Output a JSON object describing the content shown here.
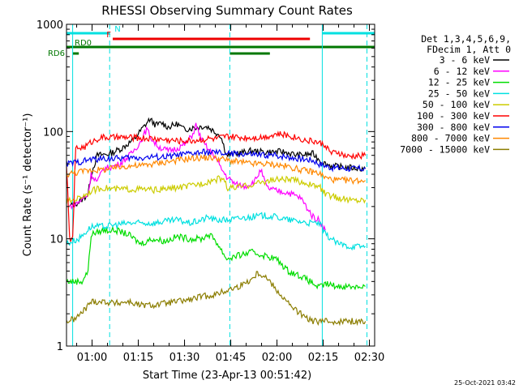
{
  "chart_data": {
    "type": "line",
    "title": "RHESSI Observing Summary Count Rates",
    "xlabel": "Start Time (23-Apr-13 00:51:42)",
    "ylabel": "Count Rate (s⁻¹ detector⁻¹)",
    "x_unit": "minutes after 00:51:42",
    "xlim": [
      0,
      100
    ],
    "ylim": [
      1,
      1000
    ],
    "yscale": "log",
    "x_ticks": [
      {
        "t": 8.3,
        "label": "01:00"
      },
      {
        "t": 23.3,
        "label": "01:15"
      },
      {
        "t": 38.3,
        "label": "01:30"
      },
      {
        "t": 53.3,
        "label": "01:45"
      },
      {
        "t": 68.3,
        "label": "02:00"
      },
      {
        "t": 83.3,
        "label": "02:15"
      },
      {
        "t": 98.3,
        "label": "02:30"
      }
    ],
    "y_ticks": [
      {
        "v": 1,
        "label": "1"
      },
      {
        "v": 10,
        "label": "10"
      },
      {
        "v": 100,
        "label": "100"
      },
      {
        "v": 1000,
        "label": "1000"
      }
    ],
    "legend": {
      "placement": "right",
      "header": [
        "Det 1,3,4,5,6,9,",
        "FDecim 1, Att 0"
      ]
    },
    "series": [
      {
        "name": "3 - 6 keV",
        "color": "#000000",
        "points": [
          [
            1,
            20
          ],
          [
            4,
            22
          ],
          [
            7,
            26
          ],
          [
            8,
            40
          ],
          [
            10,
            60
          ],
          [
            14,
            62
          ],
          [
            18,
            70
          ],
          [
            22,
            85
          ],
          [
            25,
            110
          ],
          [
            27,
            130
          ],
          [
            29,
            115
          ],
          [
            31,
            120
          ],
          [
            33,
            110
          ],
          [
            36,
            118
          ],
          [
            38,
            105
          ],
          [
            41,
            108
          ],
          [
            44,
            112
          ],
          [
            46,
            110
          ],
          [
            48,
            100
          ],
          [
            50,
            92
          ],
          [
            52,
            60
          ],
          [
            55,
            62
          ],
          [
            60,
            66
          ],
          [
            65,
            64
          ],
          [
            70,
            65
          ],
          [
            75,
            60
          ],
          [
            80,
            62
          ],
          [
            82,
            55
          ],
          [
            84,
            50
          ],
          [
            86,
            48
          ],
          [
            88,
            47
          ],
          [
            92,
            46
          ],
          [
            97,
            45
          ]
        ]
      },
      {
        "name": "6 - 12 keV",
        "color": "#ff00ff",
        "points": [
          [
            1,
            20
          ],
          [
            4,
            22
          ],
          [
            7,
            26
          ],
          [
            8,
            40
          ],
          [
            10,
            34
          ],
          [
            12,
            45
          ],
          [
            16,
            48
          ],
          [
            18,
            52
          ],
          [
            21,
            62
          ],
          [
            24,
            80
          ],
          [
            26,
            105
          ],
          [
            28,
            82
          ],
          [
            30,
            72
          ],
          [
            33,
            66
          ],
          [
            36,
            70
          ],
          [
            39,
            78
          ],
          [
            41,
            95
          ],
          [
            42,
            115
          ],
          [
            44,
            82
          ],
          [
            46,
            68
          ],
          [
            48,
            60
          ],
          [
            50,
            46
          ],
          [
            52,
            38
          ],
          [
            55,
            32
          ],
          [
            58,
            31
          ],
          [
            61,
            34
          ],
          [
            63,
            44
          ],
          [
            65,
            30
          ],
          [
            68,
            28
          ],
          [
            72,
            27
          ],
          [
            76,
            24
          ],
          [
            80,
            16
          ],
          [
            82,
            15
          ],
          [
            84,
            12
          ]
        ]
      },
      {
        "name": "12 - 25 keV",
        "color": "#00dd00",
        "points": [
          [
            0,
            4
          ],
          [
            5,
            4
          ],
          [
            7,
            5
          ],
          [
            8,
            11
          ],
          [
            12,
            12
          ],
          [
            16,
            12
          ],
          [
            20,
            11
          ],
          [
            24,
            9
          ],
          [
            28,
            10
          ],
          [
            32,
            9.5
          ],
          [
            36,
            10.5
          ],
          [
            40,
            10
          ],
          [
            44,
            10
          ],
          [
            46,
            11
          ],
          [
            48,
            10
          ],
          [
            52,
            6.5
          ],
          [
            56,
            7
          ],
          [
            60,
            7.5
          ],
          [
            64,
            7
          ],
          [
            68,
            6.5
          ],
          [
            72,
            5
          ],
          [
            76,
            4.5
          ],
          [
            79,
            4
          ],
          [
            82,
            3.5
          ],
          [
            84,
            3.8
          ],
          [
            88,
            3.6
          ],
          [
            92,
            3.6
          ],
          [
            97,
            3.6
          ]
        ]
      },
      {
        "name": "25 - 50 keV",
        "color": "#00e0e0",
        "points": [
          [
            0,
            9
          ],
          [
            4,
            10
          ],
          [
            8,
            13
          ],
          [
            12,
            13
          ],
          [
            16,
            13.5
          ],
          [
            20,
            14
          ],
          [
            24,
            14
          ],
          [
            28,
            14
          ],
          [
            32,
            14.5
          ],
          [
            36,
            15
          ],
          [
            40,
            14
          ],
          [
            44,
            15
          ],
          [
            46,
            16
          ],
          [
            48,
            15
          ],
          [
            52,
            15
          ],
          [
            56,
            15.5
          ],
          [
            60,
            16
          ],
          [
            64,
            16.5
          ],
          [
            68,
            16
          ],
          [
            72,
            15
          ],
          [
            76,
            14.5
          ],
          [
            79,
            14
          ],
          [
            82,
            14
          ],
          [
            84,
            11
          ],
          [
            86,
            10
          ],
          [
            88,
            9
          ],
          [
            92,
            8.5
          ],
          [
            97,
            8.5
          ]
        ]
      },
      {
        "name": "50 - 100 keV",
        "color": "#cccc00",
        "points": [
          [
            0,
            22
          ],
          [
            4,
            24
          ],
          [
            8,
            28
          ],
          [
            12,
            30
          ],
          [
            16,
            29
          ],
          [
            20,
            29
          ],
          [
            24,
            29
          ],
          [
            28,
            28.5
          ],
          [
            32,
            29
          ],
          [
            36,
            30
          ],
          [
            40,
            31
          ],
          [
            44,
            33
          ],
          [
            47,
            35
          ],
          [
            49,
            36
          ],
          [
            51,
            37
          ],
          [
            52,
            30
          ],
          [
            55,
            30
          ],
          [
            58,
            31
          ],
          [
            62,
            33
          ],
          [
            66,
            35
          ],
          [
            70,
            36
          ],
          [
            74,
            35
          ],
          [
            78,
            33
          ],
          [
            80,
            31
          ],
          [
            82,
            31
          ],
          [
            84,
            26
          ],
          [
            88,
            24
          ],
          [
            92,
            23
          ],
          [
            97,
            23
          ]
        ]
      },
      {
        "name": "100 - 300 keV",
        "color": "#ff0000",
        "points": [
          [
            0,
            50
          ],
          [
            1,
            10
          ],
          [
            2,
            10
          ],
          [
            3,
            70
          ],
          [
            6,
            72
          ],
          [
            8,
            80
          ],
          [
            11,
            88
          ],
          [
            16,
            88
          ],
          [
            20,
            88
          ],
          [
            24,
            87
          ],
          [
            28,
            86
          ],
          [
            32,
            84
          ],
          [
            36,
            82
          ],
          [
            40,
            82
          ],
          [
            44,
            84
          ],
          [
            46,
            86
          ],
          [
            48,
            85
          ],
          [
            52,
            90
          ],
          [
            56,
            88
          ],
          [
            60,
            88
          ],
          [
            64,
            89
          ],
          [
            68,
            95
          ],
          [
            72,
            92
          ],
          [
            76,
            86
          ],
          [
            78,
            82
          ],
          [
            80,
            82
          ],
          [
            82,
            78
          ],
          [
            84,
            75
          ],
          [
            86,
            62
          ],
          [
            88,
            64
          ],
          [
            91,
            58
          ],
          [
            97,
            60
          ]
        ]
      },
      {
        "name": "300 - 800 keV",
        "color": "#0000ee",
        "points": [
          [
            0,
            50
          ],
          [
            4,
            52
          ],
          [
            8,
            55
          ],
          [
            12,
            56
          ],
          [
            16,
            56
          ],
          [
            20,
            57
          ],
          [
            24,
            57
          ],
          [
            28,
            58
          ],
          [
            32,
            58
          ],
          [
            36,
            60
          ],
          [
            40,
            62
          ],
          [
            44,
            64
          ],
          [
            47,
            64
          ],
          [
            50,
            63
          ],
          [
            52,
            62
          ],
          [
            56,
            62
          ],
          [
            60,
            61
          ],
          [
            64,
            60
          ],
          [
            68,
            60
          ],
          [
            72,
            58
          ],
          [
            76,
            56
          ],
          [
            80,
            54
          ],
          [
            82,
            50
          ],
          [
            84,
            48
          ],
          [
            86,
            46
          ],
          [
            88,
            46
          ],
          [
            92,
            45
          ],
          [
            97,
            45
          ]
        ]
      },
      {
        "name": "800 - 7000 keV",
        "color": "#ff8800",
        "points": [
          [
            0,
            40
          ],
          [
            4,
            42
          ],
          [
            8,
            44
          ],
          [
            12,
            44
          ],
          [
            16,
            46
          ],
          [
            20,
            48
          ],
          [
            24,
            48
          ],
          [
            28,
            50
          ],
          [
            32,
            52
          ],
          [
            36,
            54
          ],
          [
            40,
            56
          ],
          [
            44,
            57
          ],
          [
            47,
            57
          ],
          [
            50,
            56
          ],
          [
            52,
            54
          ],
          [
            56,
            52
          ],
          [
            60,
            50
          ],
          [
            64,
            50
          ],
          [
            68,
            49
          ],
          [
            72,
            47
          ],
          [
            76,
            44
          ],
          [
            80,
            42
          ],
          [
            82,
            41
          ],
          [
            84,
            37
          ],
          [
            86,
            36
          ],
          [
            88,
            35
          ],
          [
            92,
            35
          ],
          [
            97,
            35
          ]
        ]
      },
      {
        "name": "7000 - 15000 keV",
        "color": "#8b7d00",
        "points": [
          [
            0,
            1.7
          ],
          [
            3,
            1.8
          ],
          [
            6,
            2.2
          ],
          [
            8,
            2.6
          ],
          [
            12,
            2.6
          ],
          [
            16,
            2.5
          ],
          [
            20,
            2.6
          ],
          [
            24,
            2.4
          ],
          [
            28,
            2.4
          ],
          [
            32,
            2.5
          ],
          [
            36,
            2.6
          ],
          [
            40,
            2.7
          ],
          [
            44,
            2.9
          ],
          [
            48,
            3.0
          ],
          [
            52,
            3.3
          ],
          [
            56,
            3.6
          ],
          [
            60,
            4.2
          ],
          [
            62,
            4.8
          ],
          [
            64,
            4.6
          ],
          [
            66,
            4.0
          ],
          [
            68,
            3.4
          ],
          [
            70,
            2.9
          ],
          [
            72,
            2.5
          ],
          [
            74,
            2.2
          ],
          [
            76,
            2.0
          ],
          [
            78,
            1.8
          ],
          [
            80,
            1.7
          ],
          [
            84,
            1.7
          ],
          [
            88,
            1.7
          ],
          [
            92,
            1.7
          ],
          [
            97,
            1.7
          ]
        ]
      }
    ],
    "flags": [
      {
        "name": "N",
        "color": "#00e0e0",
        "y_level": "top",
        "segments": [
          [
            0,
            14
          ],
          [
            83,
            100
          ]
        ]
      },
      {
        "name": "F",
        "color": "#ee0000",
        "y_level": "second",
        "segments": [
          [
            15,
            79
          ]
        ]
      },
      {
        "name": "RD0",
        "color": "#007700",
        "y_level": "third",
        "segments": [
          [
            0,
            100
          ]
        ]
      },
      {
        "name": "RD6",
        "color": "#007700",
        "y_level": "fourth",
        "segments": [
          [
            2,
            4
          ],
          [
            53,
            66
          ]
        ]
      }
    ],
    "vertical_markers": [
      {
        "t": 2.0,
        "style": "solid",
        "color": "#00e0e0"
      },
      {
        "t": 14.0,
        "style": "dashed",
        "color": "#00e0e0"
      },
      {
        "t": 53.0,
        "style": "dashed",
        "color": "#00e0e0"
      },
      {
        "t": 83.0,
        "style": "solid",
        "color": "#00e0e0"
      },
      {
        "t": 97.5,
        "style": "dashed",
        "color": "#00e0e0"
      }
    ],
    "grid": false
  },
  "timestamp": "25-Oct-2021 03:42"
}
